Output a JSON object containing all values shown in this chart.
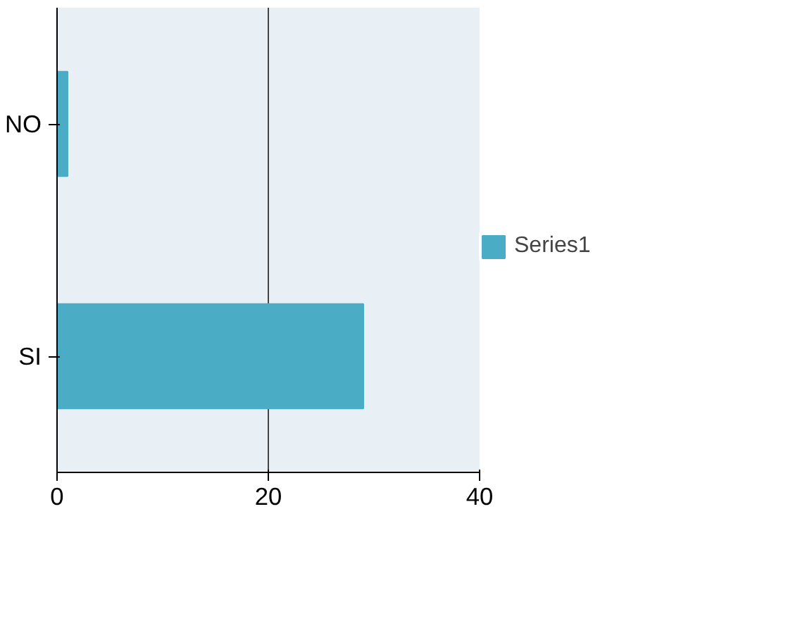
{
  "chart_data": {
    "type": "bar",
    "orientation": "horizontal",
    "categories": [
      "NO",
      "SI"
    ],
    "series": [
      {
        "name": "Series1",
        "color": "#4bacc6",
        "values": [
          1,
          29
        ]
      }
    ],
    "xlim": [
      0,
      40
    ],
    "xticks": [
      0,
      20,
      40
    ],
    "grid": "x",
    "legend": "right"
  }
}
